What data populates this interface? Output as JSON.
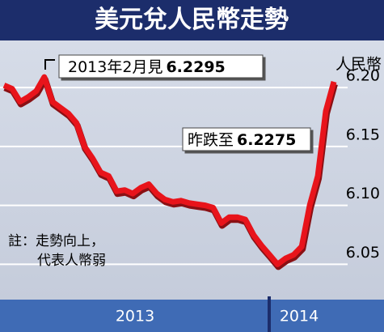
{
  "chart_data": {
    "type": "line",
    "title": "美元兌人民幣走勢",
    "y_axis_label": "人民幣",
    "x_labels": [
      "2013",
      "2014"
    ],
    "series": [
      {
        "name": "美元兌人民幣",
        "color": "#e8141b",
        "values": [
          6.202,
          6.199,
          6.188,
          6.192,
          6.197,
          6.209,
          6.188,
          6.183,
          6.178,
          6.17,
          6.15,
          6.14,
          6.128,
          6.125,
          6.112,
          6.113,
          6.11,
          6.115,
          6.118,
          6.11,
          6.105,
          6.103,
          6.104,
          6.102,
          6.101,
          6.1,
          6.098,
          6.085,
          6.09,
          6.09,
          6.088,
          6.075,
          6.066,
          6.058,
          6.05,
          6.055,
          6.058,
          6.065,
          6.1,
          6.125,
          6.18,
          6.205
        ]
      }
    ],
    "ylim": [
      6.02,
      6.24
    ],
    "yticks": [
      {
        "value": 6.05,
        "label": "6.05"
      },
      {
        "value": 6.1,
        "label": "6.10"
      },
      {
        "value": 6.15,
        "label": "6.15"
      },
      {
        "value": 6.2,
        "label": "6.20"
      }
    ],
    "grid": true,
    "annotations": [
      {
        "text": "2013年2月見",
        "value": "6.2295"
      },
      {
        "text": "昨跌至",
        "value": "6.2275"
      }
    ],
    "note": [
      "註：走勢向上，",
      "代表人幣弱"
    ]
  }
}
